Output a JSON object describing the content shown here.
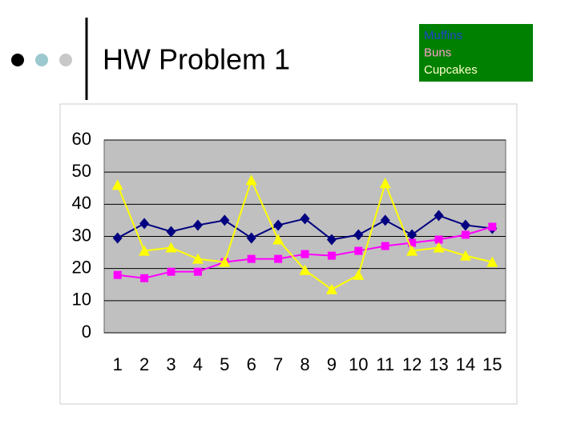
{
  "title": "HW Problem 1",
  "chart_data": {
    "type": "line",
    "categories": [
      "1",
      "2",
      "3",
      "4",
      "5",
      "6",
      "7",
      "8",
      "9",
      "10",
      "11",
      "12",
      "13",
      "14",
      "15"
    ],
    "series": [
      {
        "name": "Muffins",
        "color": "#000080",
        "legend_color": "#1f3fd0",
        "marker": "diamond",
        "values": [
          29.5,
          34,
          31.5,
          33.5,
          35,
          29.5,
          33.5,
          35.5,
          29,
          30.5,
          35,
          30.5,
          36.5,
          33.5,
          32.5
        ]
      },
      {
        "name": "Buns",
        "color": "#ff00ff",
        "legend_color": "#ff9fd0",
        "marker": "square",
        "values": [
          18,
          17,
          19,
          19,
          22,
          23,
          23,
          24.5,
          24,
          25.5,
          27,
          28,
          29,
          30.5,
          33
        ]
      },
      {
        "name": "Cupcakes",
        "color": "#ffff00",
        "legend_color": "#ffffcc",
        "marker": "triangle",
        "values": [
          46,
          25.5,
          26.5,
          23,
          22,
          47.5,
          29,
          19.5,
          13.5,
          18,
          46.5,
          25.5,
          26.5,
          24,
          22
        ]
      }
    ],
    "ylim": [
      0,
      60
    ],
    "yticks": [
      0,
      10,
      20,
      30,
      40,
      50,
      60
    ],
    "grid": true,
    "legend": "top-right",
    "plot_color": "#c0c0c0",
    "legend_background": "#008000"
  }
}
